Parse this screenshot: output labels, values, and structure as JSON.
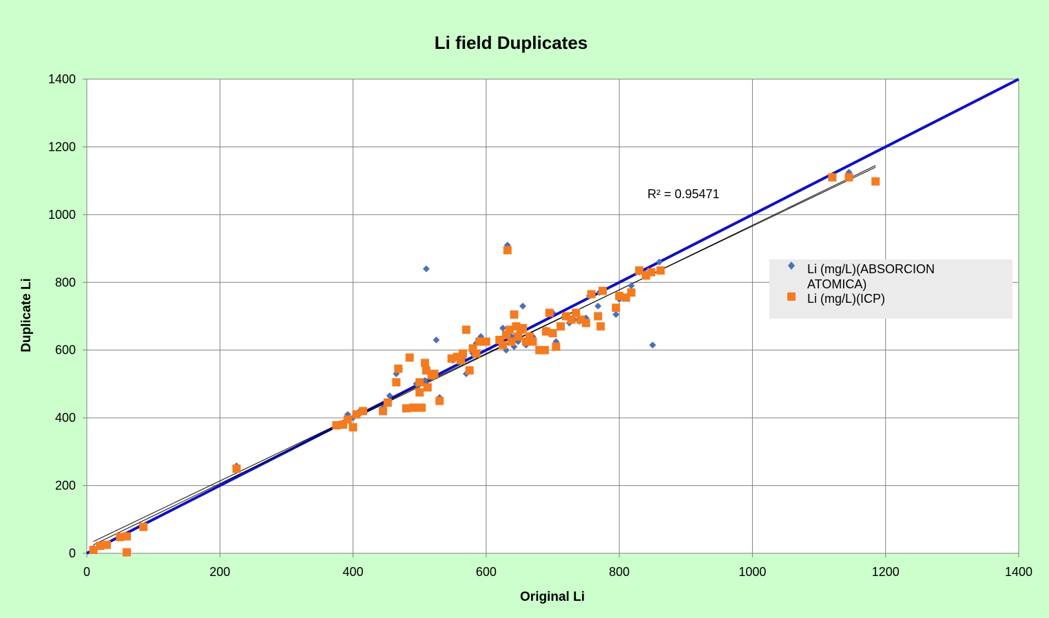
{
  "chart_data": {
    "type": "scatter",
    "title": "Li field Duplicates",
    "xlabel": "Original Li",
    "ylabel": "Duplicate Li",
    "xlim": [
      0,
      1400
    ],
    "ylim": [
      0,
      1400
    ],
    "xticks": [
      "0",
      "200",
      "400",
      "600",
      "800",
      "1000",
      "1200",
      "1400"
    ],
    "yticks": [
      "0",
      "200",
      "400",
      "600",
      "800",
      "1000",
      "1200",
      "1400"
    ],
    "grid": true,
    "legend_position": "right",
    "annotation": "R² = 0.95471",
    "colors": {
      "background": "#ccffcc",
      "plot_area": "#ffffff",
      "aa_series": "#4f6fb5",
      "icp_series": "#f47b20",
      "one_to_one_line": "#1010c0",
      "trend_line": "#000000",
      "legend_bg": "#ebebeb"
    },
    "series": [
      {
        "name": "Li (mg/L)(ABSORCION ATOMICA)",
        "marker": "diamond",
        "points": [
          [
            10,
            15
          ],
          [
            20,
            20
          ],
          [
            30,
            25
          ],
          [
            50,
            50
          ],
          [
            60,
            48
          ],
          [
            62,
            5
          ],
          [
            85,
            80
          ],
          [
            225,
            258
          ],
          [
            375,
            380
          ],
          [
            385,
            385
          ],
          [
            392,
            410
          ],
          [
            400,
            400
          ],
          [
            410,
            420
          ],
          [
            445,
            430
          ],
          [
            455,
            465
          ],
          [
            465,
            530
          ],
          [
            470,
            545
          ],
          [
            485,
            580
          ],
          [
            495,
            500
          ],
          [
            500,
            480
          ],
          [
            508,
            510
          ],
          [
            510,
            840
          ],
          [
            515,
            535
          ],
          [
            520,
            530
          ],
          [
            525,
            630
          ],
          [
            530,
            460
          ],
          [
            550,
            570
          ],
          [
            560,
            580
          ],
          [
            565,
            575
          ],
          [
            570,
            530
          ],
          [
            575,
            540
          ],
          [
            580,
            590
          ],
          [
            585,
            620
          ],
          [
            592,
            640
          ],
          [
            600,
            625
          ],
          [
            620,
            630
          ],
          [
            625,
            665
          ],
          [
            630,
            600
          ],
          [
            632,
            910
          ],
          [
            638,
            640
          ],
          [
            642,
            610
          ],
          [
            648,
            625
          ],
          [
            650,
            655
          ],
          [
            655,
            730
          ],
          [
            660,
            615
          ],
          [
            670,
            640
          ],
          [
            680,
            600
          ],
          [
            690,
            660
          ],
          [
            700,
            710
          ],
          [
            705,
            625
          ],
          [
            712,
            670
          ],
          [
            718,
            700
          ],
          [
            725,
            680
          ],
          [
            732,
            690
          ],
          [
            740,
            685
          ],
          [
            750,
            695
          ],
          [
            755,
            760
          ],
          [
            768,
            730
          ],
          [
            770,
            770
          ],
          [
            795,
            705
          ],
          [
            800,
            750
          ],
          [
            810,
            755
          ],
          [
            818,
            790
          ],
          [
            830,
            830
          ],
          [
            840,
            825
          ],
          [
            850,
            615
          ],
          [
            860,
            860
          ],
          [
            1120,
            1115
          ],
          [
            1145,
            1125
          ],
          [
            1185,
            1100
          ]
        ]
      },
      {
        "name": "Li (mg/L)(ICP)",
        "marker": "square",
        "points": [
          [
            10,
            10
          ],
          [
            20,
            22
          ],
          [
            30,
            25
          ],
          [
            50,
            48
          ],
          [
            60,
            50
          ],
          [
            60,
            3
          ],
          [
            85,
            78
          ],
          [
            225,
            250
          ],
          [
            375,
            378
          ],
          [
            385,
            380
          ],
          [
            392,
            395
          ],
          [
            400,
            372
          ],
          [
            405,
            410
          ],
          [
            415,
            420
          ],
          [
            445,
            420
          ],
          [
            452,
            445
          ],
          [
            465,
            505
          ],
          [
            468,
            545
          ],
          [
            480,
            428
          ],
          [
            485,
            578
          ],
          [
            490,
            430
          ],
          [
            495,
            430
          ],
          [
            500,
            505
          ],
          [
            500,
            475
          ],
          [
            503,
            430
          ],
          [
            508,
            562
          ],
          [
            510,
            540
          ],
          [
            512,
            490
          ],
          [
            518,
            525
          ],
          [
            522,
            530
          ],
          [
            530,
            450
          ],
          [
            548,
            575
          ],
          [
            556,
            580
          ],
          [
            562,
            570
          ],
          [
            565,
            590
          ],
          [
            570,
            660
          ],
          [
            575,
            540
          ],
          [
            580,
            605
          ],
          [
            585,
            590
          ],
          [
            590,
            625
          ],
          [
            600,
            625
          ],
          [
            620,
            630
          ],
          [
            625,
            615
          ],
          [
            630,
            645
          ],
          [
            632,
            895
          ],
          [
            635,
            660
          ],
          [
            638,
            625
          ],
          [
            642,
            705
          ],
          [
            645,
            670
          ],
          [
            648,
            640
          ],
          [
            652,
            660
          ],
          [
            655,
            665
          ],
          [
            660,
            625
          ],
          [
            665,
            640
          ],
          [
            670,
            625
          ],
          [
            680,
            600
          ],
          [
            688,
            600
          ],
          [
            690,
            655
          ],
          [
            695,
            710
          ],
          [
            700,
            650
          ],
          [
            705,
            610
          ],
          [
            712,
            670
          ],
          [
            720,
            700
          ],
          [
            728,
            690
          ],
          [
            735,
            710
          ],
          [
            742,
            690
          ],
          [
            750,
            680
          ],
          [
            758,
            765
          ],
          [
            768,
            700
          ],
          [
            772,
            670
          ],
          [
            775,
            775
          ],
          [
            795,
            725
          ],
          [
            800,
            760
          ],
          [
            810,
            755
          ],
          [
            818,
            770
          ],
          [
            830,
            835
          ],
          [
            840,
            820
          ],
          [
            848,
            830
          ],
          [
            862,
            835
          ],
          [
            1120,
            1110
          ],
          [
            1145,
            1110
          ],
          [
            1185,
            1098
          ]
        ]
      }
    ],
    "lines": [
      {
        "kind": "one-to-one",
        "from": [
          0,
          0
        ],
        "to": [
          1400,
          1400
        ]
      },
      {
        "kind": "trend-a",
        "from": [
          10,
          35
        ],
        "to": [
          1185,
          1140
        ]
      },
      {
        "kind": "trend-b",
        "from": [
          10,
          25
        ],
        "to": [
          1185,
          1145
        ]
      }
    ]
  }
}
